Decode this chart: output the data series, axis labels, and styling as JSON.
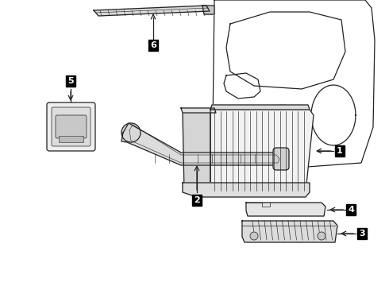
{
  "bg_color": "#ffffff",
  "line_color": "#222222",
  "fill_light": "#f0f0f0",
  "fill_mid": "#e0e0e0",
  "fill_dark": "#cccccc"
}
